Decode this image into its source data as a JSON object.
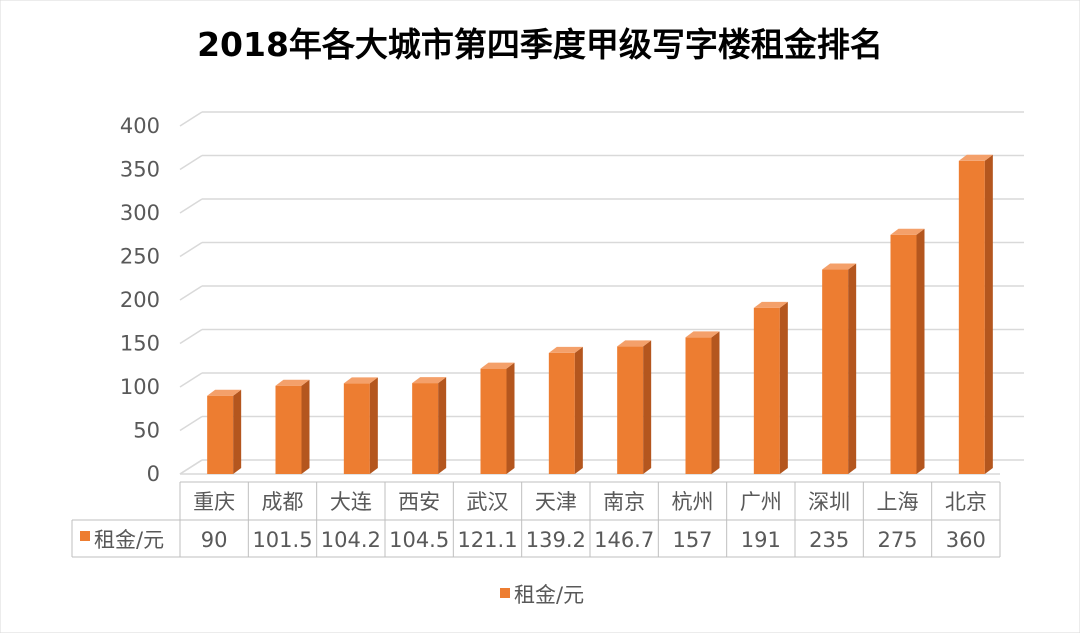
{
  "chart_data": {
    "type": "bar",
    "title": "2018年各大城市第四季度甲级写字楼租金排名",
    "categories": [
      "重庆",
      "成都",
      "大连",
      "西安",
      "武汉",
      "天津",
      "南京",
      "杭州",
      "广州",
      "深圳",
      "上海",
      "北京"
    ],
    "series": [
      {
        "name": "租金/元",
        "values": [
          90,
          101.5,
          104.2,
          104.5,
          121.1,
          139.2,
          146.7,
          157,
          191,
          235,
          275,
          360
        ],
        "value_labels": [
          "90",
          "101.5",
          "104.2",
          "104.5",
          "121.1",
          "139.2",
          "146.7",
          "157",
          "191",
          "235",
          "275",
          "360"
        ]
      }
    ],
    "yticks": [
      "0",
      "50",
      "100",
      "150",
      "200",
      "250",
      "300",
      "350",
      "400"
    ],
    "ylim": [
      0,
      400
    ],
    "xlabel": "",
    "ylabel": "",
    "grid": true,
    "legend_position": "bottom",
    "data_table": true,
    "style": "3d-column"
  },
  "colors": {
    "bar_front": "#ED7D31",
    "bar_side": "#B4561E",
    "bar_top": "#F4A06A",
    "grid": "#D9D9D9",
    "table_border": "#BFBFBF",
    "axis_text": "#595959",
    "title_text": "#000000"
  }
}
